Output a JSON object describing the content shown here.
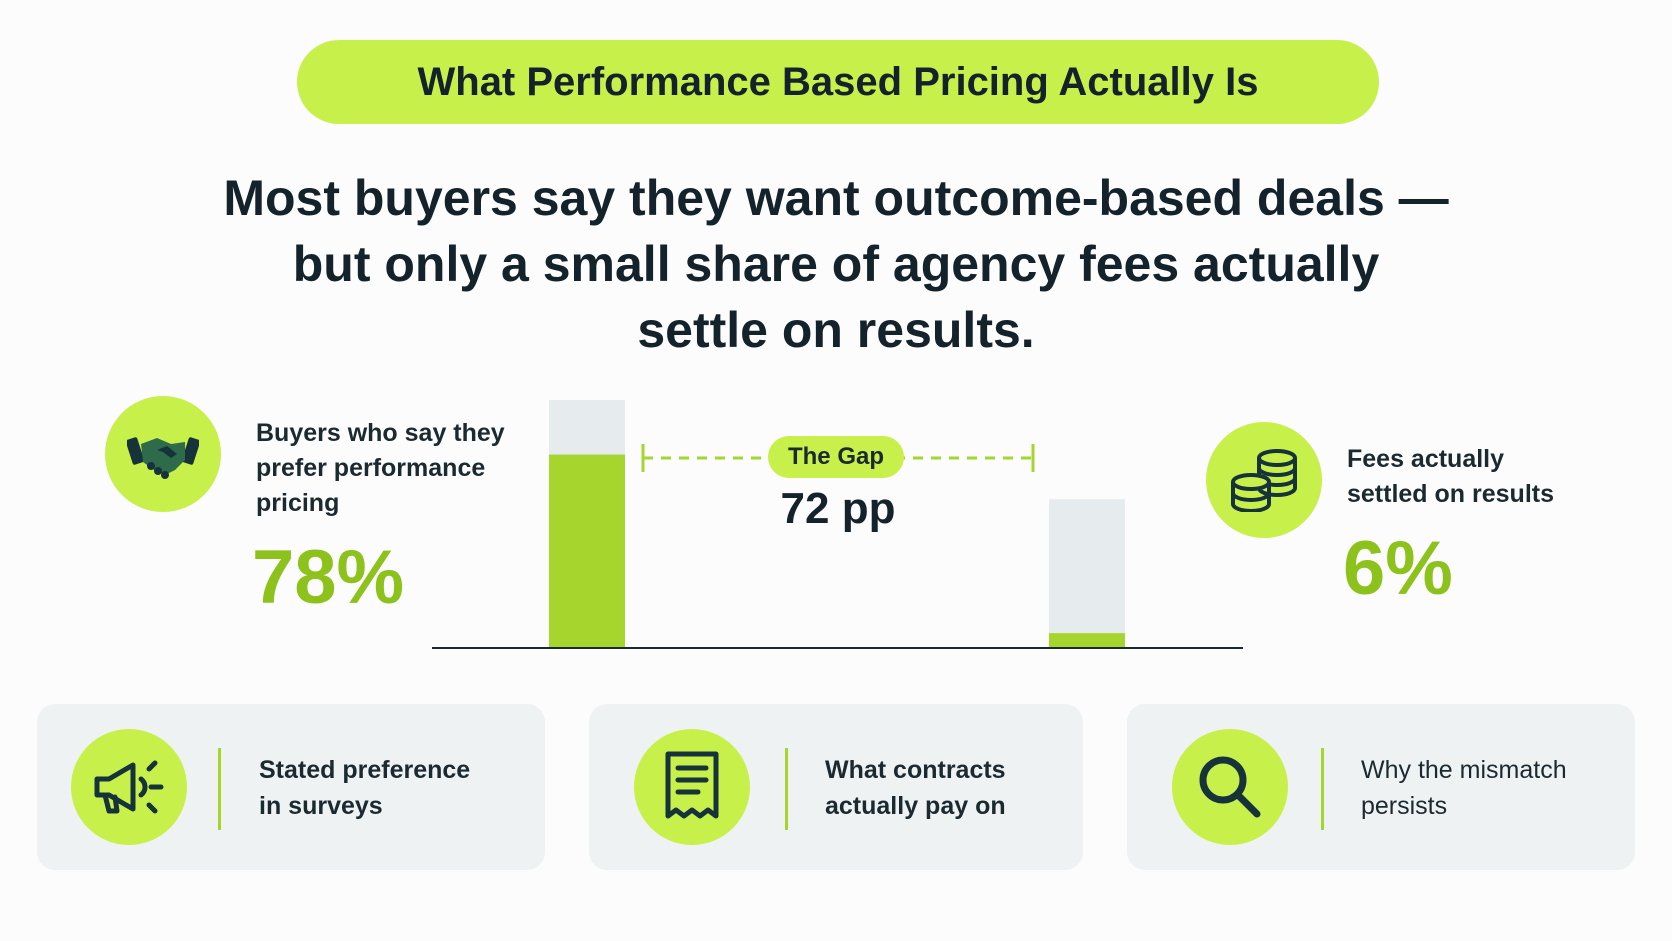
{
  "title_pill": "What Performance Based Pricing Actually Is",
  "headline": [
    "Most buyers say they want outcome-based deals —",
    "but only a small share of agency fees actually",
    "settle on results."
  ],
  "left_stat": {
    "label_lines": [
      "Buyers who say they",
      "prefer performance",
      "pricing"
    ],
    "value": "78%",
    "icon": "handshake-icon"
  },
  "right_stat": {
    "label_lines": [
      "Fees actually",
      "settled on results"
    ],
    "value": "6%",
    "icon": "coins-icon"
  },
  "gap": {
    "label": "The Gap",
    "value": "72 pp"
  },
  "cards": [
    {
      "label_lines": [
        "Stated preference",
        "in surveys"
      ],
      "icon": "megaphone-icon",
      "bold": true
    },
    {
      "label_lines": [
        "What contracts",
        "actually pay on"
      ],
      "icon": "receipt-icon",
      "bold": true
    },
    {
      "label_lines": [
        "Why the mismatch",
        "persists"
      ],
      "icon": "magnifier-icon",
      "bold": false
    }
  ],
  "colors": {
    "accent": "#c8f04b",
    "bar_fill": "#a6d62e",
    "value_green": "#8cc21b",
    "bar_track": "#e6ecee",
    "text_dark": "#14232b",
    "card_bg": "#eef2f3"
  },
  "chart_data": {
    "type": "bar",
    "categories": [
      "Buyers who say they prefer performance pricing",
      "Fees actually settled on results"
    ],
    "values": [
      78,
      6
    ],
    "unit": "%",
    "track_totals": [
      100,
      60
    ],
    "ylim": [
      0,
      100
    ],
    "gap_annotation": "72 pp",
    "grid": false
  }
}
